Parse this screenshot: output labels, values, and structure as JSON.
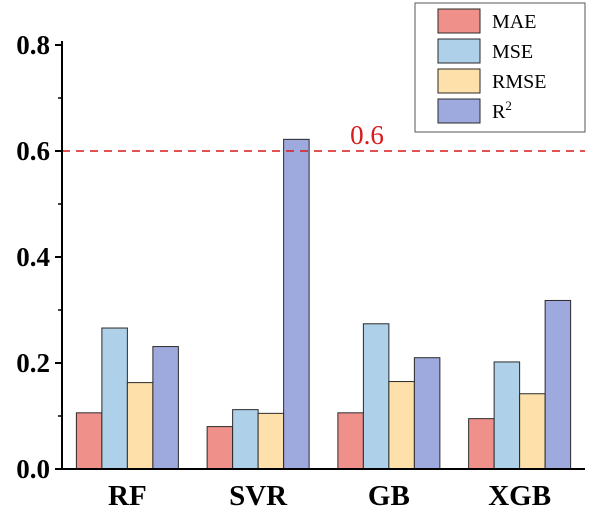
{
  "chart_data": {
    "type": "bar",
    "categories": [
      "RF",
      "SVR",
      "GB",
      "XGB"
    ],
    "series": [
      {
        "name": "MAE",
        "values": [
          0.106,
          0.08,
          0.106,
          0.095
        ],
        "color": "#f0908b"
      },
      {
        "name": "MSE",
        "values": [
          0.266,
          0.112,
          0.274,
          0.202
        ],
        "color": "#aed0e8"
      },
      {
        "name": "RMSE",
        "values": [
          0.163,
          0.105,
          0.165,
          0.142
        ],
        "color": "#fde0aa"
      },
      {
        "name": "R",
        "name_sup": "2",
        "values": [
          0.231,
          0.622,
          0.21,
          0.318
        ],
        "color": "#9ea9dd"
      }
    ],
    "ylim": [
      0,
      0.8
    ],
    "yticks": [
      "0.0",
      "0.2",
      "0.4",
      "0.6",
      "0.8"
    ],
    "reference_line": {
      "value": 0.6,
      "label": "0.6",
      "color": "#d71a1a",
      "style": "dashed"
    },
    "legend_position": "top-right",
    "grid": false,
    "title": "",
    "xlabel": "",
    "ylabel": ""
  }
}
